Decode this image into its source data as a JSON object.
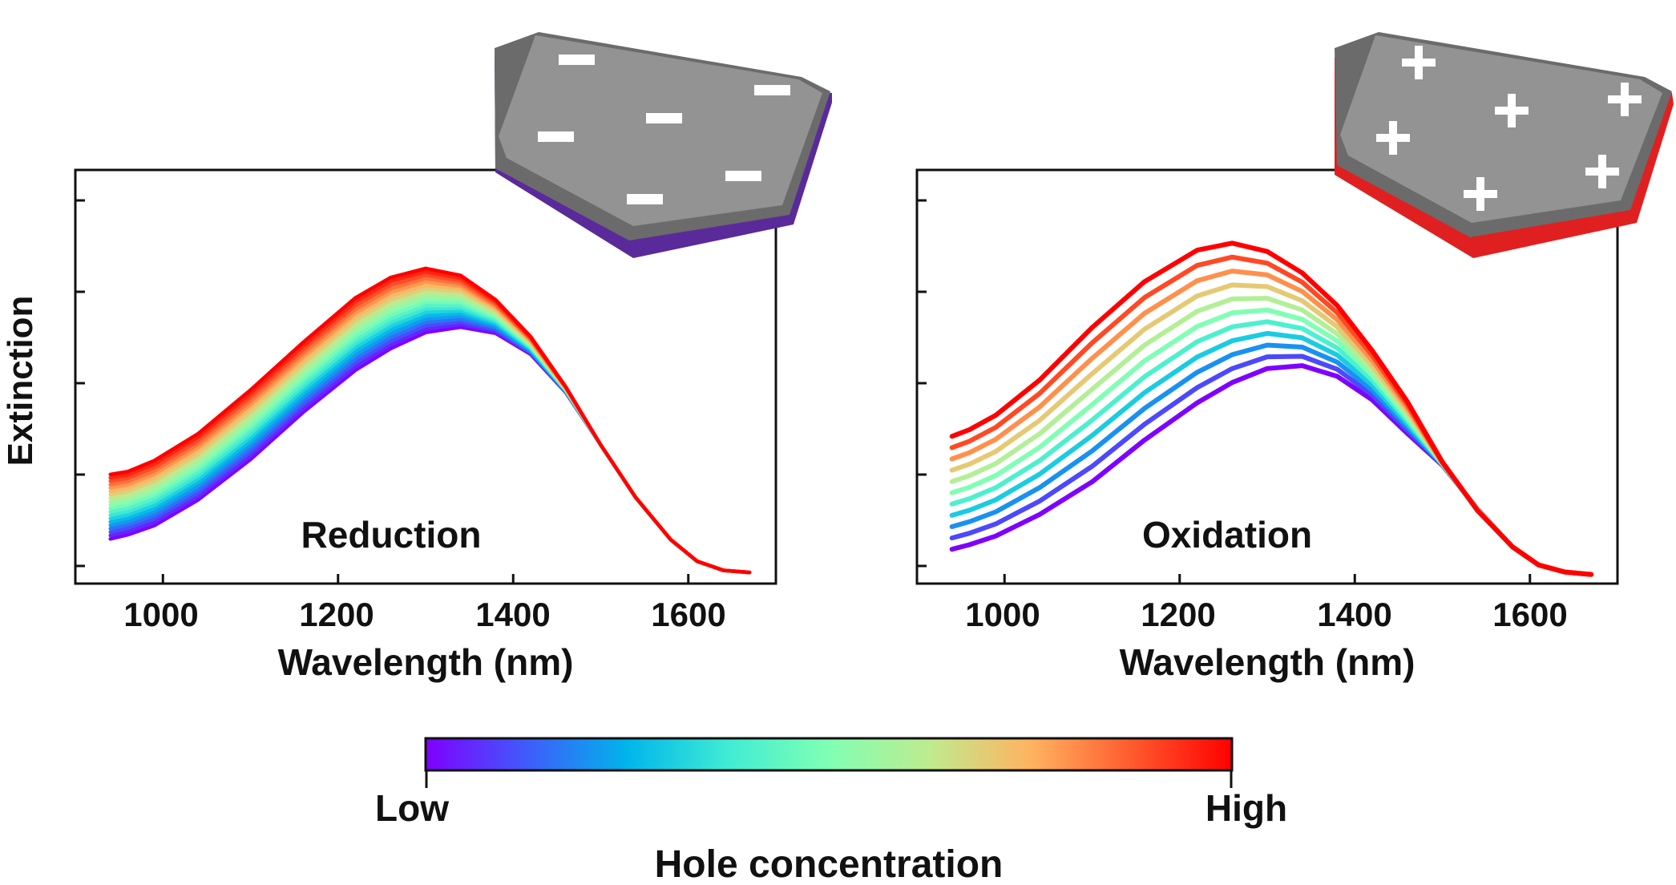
{
  "chart_data": [
    {
      "type": "line",
      "panel_label": "Reduction",
      "ylabel": "Extinction",
      "xlabel": "Wavelength (nm)",
      "xlim": [
        900,
        1700
      ],
      "x_ticks": [
        1000,
        1200,
        1400,
        1600
      ],
      "x_tick_labels": [
        "1000",
        "1200",
        "1400",
        "1600"
      ],
      "ylim": [
        0.0,
        1.0
      ],
      "y_tick_labels_shown": false,
      "grid": false,
      "curve_count": 20,
      "color_scale": "hole concentration (low = violet, high = red)",
      "curve_shape": {
        "x": [
          940,
          960,
          990,
          1040,
          1100,
          1160,
          1220,
          1260,
          1300,
          1340,
          1380,
          1420,
          1460,
          1500,
          1540,
          1580,
          1610,
          1640,
          1670
        ],
        "low_concentration_y": [
          0.108,
          0.118,
          0.14,
          0.202,
          0.3,
          0.414,
          0.516,
          0.568,
          0.607,
          0.62,
          0.605,
          0.554,
          0.462,
          0.335,
          0.208,
          0.106,
          0.054,
          0.032,
          0.027
        ],
        "high_concentration_y": [
          0.264,
          0.271,
          0.297,
          0.362,
          0.468,
          0.583,
          0.691,
          0.74,
          0.762,
          0.745,
          0.686,
          0.597,
          0.476,
          0.335,
          0.208,
          0.106,
          0.054,
          0.032,
          0.027
        ]
      },
      "inset": {
        "shape": "hexagonal nanoplatelet",
        "sign": "−",
        "edge_color": "#5a2a9b"
      }
    },
    {
      "type": "line",
      "panel_label": "Oxidation",
      "xlabel": "Wavelength (nm)",
      "xlim": [
        900,
        1700
      ],
      "x_ticks": [
        1000,
        1200,
        1400,
        1600
      ],
      "x_tick_labels": [
        "1000",
        "1200",
        "1400",
        "1600"
      ],
      "ylim": [
        0.0,
        1.0
      ],
      "y_tick_labels_shown": false,
      "grid": false,
      "curve_count": 11,
      "color_scale": "hole concentration (low = violet, high = red)",
      "curve_shape": {
        "x": [
          940,
          960,
          990,
          1040,
          1100,
          1160,
          1220,
          1260,
          1300,
          1340,
          1380,
          1420,
          1460,
          1500,
          1540,
          1580,
          1610,
          1640,
          1670
        ],
        "low_concentration_y": [
          0.083,
          0.094,
          0.115,
          0.167,
          0.246,
          0.347,
          0.437,
          0.486,
          0.52,
          0.527,
          0.501,
          0.444,
          0.363,
          0.286,
          0.181,
          0.089,
          0.045,
          0.028,
          0.022
        ],
        "high_concentration_y": [
          0.356,
          0.372,
          0.407,
          0.492,
          0.619,
          0.73,
          0.806,
          0.823,
          0.803,
          0.751,
          0.672,
          0.563,
          0.44,
          0.294,
          0.177,
          0.089,
          0.045,
          0.028,
          0.022
        ]
      },
      "inset": {
        "shape": "hexagonal nanoplatelet",
        "sign": "+",
        "edge_color": "#e02020"
      }
    }
  ],
  "colorbar": {
    "title": "Hole concentration",
    "low_label": "Low",
    "high_label": "High",
    "colors": [
      "#7f00ff",
      "#3f5bfb",
      "#00b5eb",
      "#40ecd4",
      "#80ffb4",
      "#bfeb8f",
      "#ffb360",
      "#ff5b2e",
      "#ff0000"
    ]
  }
}
